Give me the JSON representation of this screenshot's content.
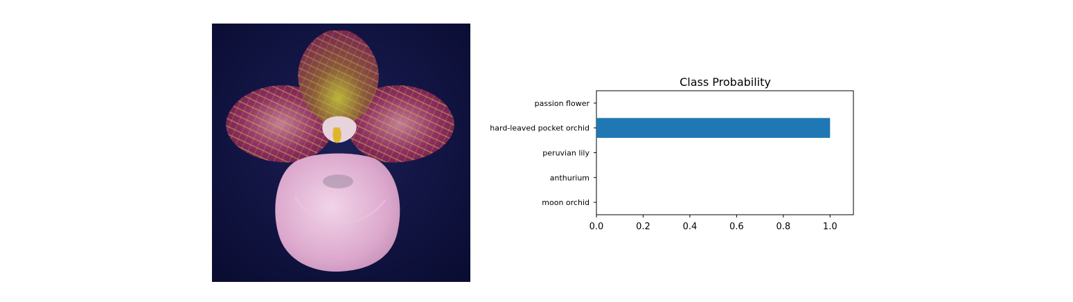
{
  "figure": {
    "flower_image": {
      "subject": "pink-purple slipper orchid on dark blue background"
    }
  },
  "chart_data": {
    "type": "bar",
    "orientation": "horizontal",
    "title": "Class Probability",
    "categories": [
      "passion flower",
      "hard-leaved pocket orchid",
      "peruvian lily",
      "anthurium",
      "moon orchid"
    ],
    "values": [
      0.0,
      1.0,
      0.0,
      0.0,
      0.0
    ],
    "xlim": [
      0,
      1.1
    ],
    "xticks": [
      "0.0",
      "0.2",
      "0.4",
      "0.6",
      "0.8",
      "1.0"
    ],
    "xtick_values": [
      0,
      0.2,
      0.4,
      0.6,
      0.8,
      1.0
    ],
    "xlabel": "",
    "ylabel": "",
    "grid": false,
    "bar_color": "#1f77b4"
  }
}
